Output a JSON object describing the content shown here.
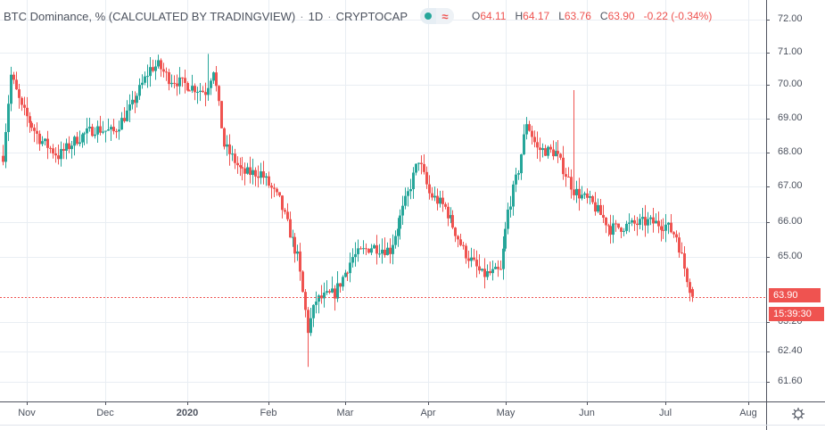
{
  "header": {
    "symbol_title": "BTC Dominance, % (CALCULATED BY TRADINGVIEW)",
    "interval": "1D",
    "exchange": "CRYPTOCAP",
    "separator": "·",
    "ohlc": {
      "open_label": "O",
      "open": "64.11",
      "high_label": "H",
      "high": "64.17",
      "low_label": "L",
      "low": "63.76",
      "close_label": "C",
      "close": "63.90",
      "change": "-0.22 (-0.34%)"
    },
    "icons": [
      "visibility-dot-icon",
      "wave-approx-icon"
    ]
  },
  "price_axis": {
    "ticks": [
      "72.00",
      "71.00",
      "70.00",
      "69.00",
      "68.00",
      "67.00",
      "66.00",
      "65.00",
      "63.20",
      "62.40",
      "61.60"
    ],
    "last_price_label": "63.90",
    "countdown_label": "15:39:30"
  },
  "time_axis": {
    "ticks": [
      "Nov",
      "Dec",
      "2020",
      "Feb",
      "Mar",
      "Apr",
      "May",
      "Jun",
      "Jul",
      "Aug"
    ],
    "bold_tick": "2020"
  },
  "colors": {
    "up": "#26a69a",
    "down": "#ef5350",
    "grid": "#e9eef3",
    "axis_text": "#4c525e",
    "last_price_line": "#ef5350"
  },
  "settings_icon": "gear-icon",
  "chart_data": {
    "type": "candlestick",
    "title": "BTC Dominance, % (CALCULATED BY TRADINGVIEW) · 1D · CRYPTOCAP",
    "xlabel": "",
    "ylabel": "BTC Dominance %",
    "y_scale": "log",
    "ylim": [
      61.3,
      72.3
    ],
    "grid": true,
    "last": {
      "open": 64.11,
      "high": 64.17,
      "low": 63.76,
      "close": 63.9,
      "change": -0.22,
      "change_pct": -0.34
    },
    "x_range": [
      "2019-10-22",
      "2020-08-10"
    ],
    "weekly_closes_approx": {
      "x": [
        "2019-10-22",
        "2019-10-25",
        "2019-10-29",
        "2019-11-05",
        "2019-11-12",
        "2019-11-19",
        "2019-11-26",
        "2019-12-03",
        "2019-12-10",
        "2019-12-17",
        "2019-12-20",
        "2019-12-24",
        "2019-12-31",
        "2020-01-07",
        "2020-01-10",
        "2020-01-14",
        "2020-01-21",
        "2020-01-28",
        "2020-02-04",
        "2020-02-11",
        "2020-02-15",
        "2020-02-18",
        "2020-02-25",
        "2020-03-03",
        "2020-03-10",
        "2020-03-17",
        "2020-03-24",
        "2020-03-28",
        "2020-04-01",
        "2020-04-07",
        "2020-04-14",
        "2020-04-21",
        "2020-04-28",
        "2020-05-01",
        "2020-05-05",
        "2020-05-08",
        "2020-05-12",
        "2020-05-19",
        "2020-05-26",
        "2020-06-02",
        "2020-06-09",
        "2020-06-16",
        "2020-06-23",
        "2020-06-30",
        "2020-07-04",
        "2020-07-07",
        "2020-07-10"
      ],
      "close": [
        67.9,
        70.3,
        69.3,
        68.4,
        67.9,
        68.4,
        68.7,
        68.6,
        69.4,
        70.5,
        70.6,
        70.2,
        70.0,
        69.8,
        70.5,
        68.2,
        67.4,
        67.4,
        66.6,
        65.0,
        63.0,
        63.8,
        64.0,
        65.0,
        65.3,
        65.2,
        66.8,
        67.8,
        66.8,
        66.4,
        65.2,
        64.5,
        64.6,
        66.3,
        67.5,
        68.9,
        68.1,
        68.0,
        66.9,
        66.5,
        65.8,
        65.9,
        66.0,
        65.9,
        65.6,
        64.7,
        63.9
      ],
      "notes": "Approximate daily-candle path read from chart; spike high ~69.85 in late May; low ~62.0 mid Feb; high ~70.95 early Jan"
    }
  }
}
